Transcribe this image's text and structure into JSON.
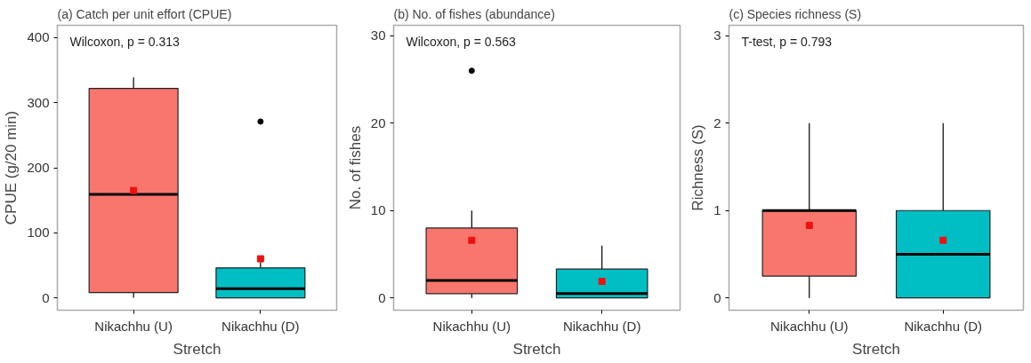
{
  "chart_data": [
    {
      "type": "box",
      "title": "(a) Catch per unit effort (CPUE)",
      "xlabel": "Stretch",
      "ylabel": "CPUE (g/20 min)",
      "categories": [
        "Nikachhu (U)",
        "Nikachhu (D)"
      ],
      "colors": [
        "#f8766d",
        "#00bfc4"
      ],
      "ylim": [
        -19,
        419
      ],
      "yticks": [
        0,
        100,
        200,
        300,
        400
      ],
      "annotations": [
        "Wilcoxon, p = 0.313"
      ],
      "boxes": [
        {
          "low": 0,
          "q1": 8,
          "median": 159,
          "q3": 322,
          "high": 339,
          "mean": 165
        },
        {
          "low": 0,
          "q1": 0,
          "median": 14,
          "q3": 46,
          "high": 55,
          "mean": 60,
          "outliers": [
            271
          ]
        }
      ]
    },
    {
      "type": "box",
      "title": "(b) No. of fishes (abundance)",
      "xlabel": "Stretch",
      "ylabel": "No. of fishes",
      "categories": [
        "Nikachhu (U)",
        "Nikachhu (D)"
      ],
      "colors": [
        "#f8766d",
        "#00bfc4"
      ],
      "ylim": [
        -1.4,
        31.2
      ],
      "yticks": [
        0,
        10,
        20,
        30
      ],
      "annotations": [
        "Wilcoxon, p = 0.563"
      ],
      "boxes": [
        {
          "low": 0,
          "q1": 0.5,
          "median": 2,
          "q3": 8,
          "high": 10,
          "mean": 6.6,
          "outliers": [
            26
          ]
        },
        {
          "low": 0,
          "q1": 0,
          "median": 0.5,
          "q3": 3.3,
          "high": 6,
          "mean": 1.9
        }
      ]
    },
    {
      "type": "box",
      "title": "(c) Species richness (S)",
      "xlabel": "Stretch",
      "ylabel": "Richness (S)",
      "categories": [
        "Nikachhu (U)",
        "Nikachhu (D)"
      ],
      "colors": [
        "#f8766d",
        "#00bfc4"
      ],
      "ylim": [
        -0.14,
        3.12
      ],
      "yticks": [
        0,
        1,
        2,
        3
      ],
      "annotations": [
        "T-test, p = 0.793"
      ],
      "boxes": [
        {
          "low": 0,
          "q1": 0.25,
          "median": 1,
          "q3": 1,
          "high": 2,
          "mean": 0.83
        },
        {
          "low": 0,
          "q1": 0,
          "median": 0.5,
          "q3": 1,
          "high": 2,
          "mean": 0.66
        }
      ]
    }
  ]
}
